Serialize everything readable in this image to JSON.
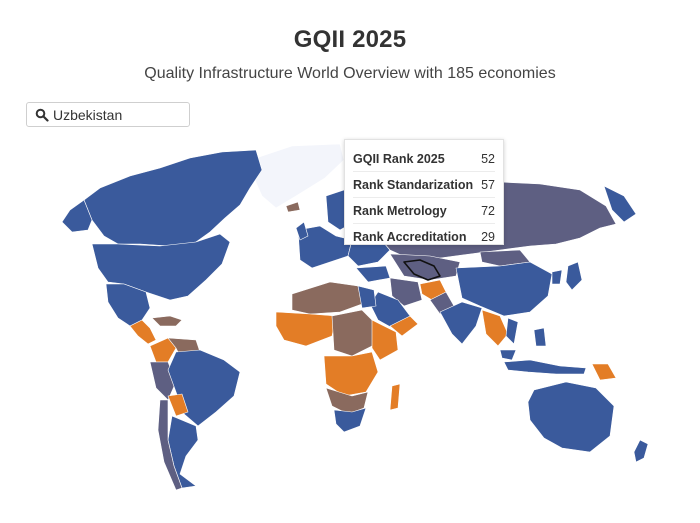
{
  "header": {
    "title": "GQII 2025",
    "subtitle": "Quality Infrastructure World Overview with 185 economies"
  },
  "search": {
    "value": "Uzbekistan",
    "icon": "search-icon"
  },
  "tooltip": {
    "rows": [
      {
        "label": "GQII Rank 2025",
        "value": "52"
      },
      {
        "label": "Rank Standarization",
        "value": "57"
      },
      {
        "label": "Rank Metrology",
        "value": "72"
      },
      {
        "label": "Rank Accreditation",
        "value": "29"
      }
    ]
  },
  "colors": {
    "tier_top": "#3a5a9c",
    "tier_upper_mid": "#5e5f82",
    "tier_lower_mid": "#8a6a5e",
    "tier_low": "#e37d26",
    "no_data": "#f3f5fb",
    "selected_outline": "#111111"
  }
}
